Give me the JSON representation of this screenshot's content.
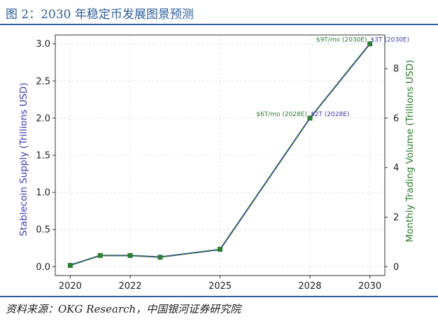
{
  "figure": {
    "title": "图 2：2030 年稳定币发展图景预测",
    "source": "资料来源：OKG Research，中国银河证券研究院"
  },
  "chart_data": {
    "type": "line",
    "x": [
      2020,
      2021,
      2022,
      2023,
      2025,
      2028,
      2030
    ],
    "xticks": [
      2020,
      2022,
      2025,
      2028,
      2030
    ],
    "xlim": [
      2019.5,
      2030.5
    ],
    "series": [
      {
        "axis": "left",
        "values": [
          0.02,
          0.15,
          0.15,
          0.13,
          0.23,
          2.0,
          3.0
        ],
        "color": "#3b3fb5"
      },
      {
        "axis": "right",
        "values": [
          0.05,
          0.45,
          0.45,
          0.38,
          0.7,
          6.0,
          9.0
        ],
        "color": "#2e7d32"
      }
    ],
    "left_axis": {
      "label": "Stablecoin Supply (Trillions USD)",
      "ylim": [
        -0.12,
        3.12
      ],
      "ticks": [
        "0.0",
        "0.5",
        "1.0",
        "1.5",
        "2.0",
        "2.5",
        "3.0"
      ],
      "color": "#3b3fb5"
    },
    "right_axis": {
      "label": "Monthly Trading Volume (Trillions USD)",
      "ylim": [
        -0.36,
        9.36
      ],
      "ticks": [
        "0",
        "2",
        "4",
        "6",
        "8"
      ],
      "color": "#2e7d32"
    },
    "annotations": [
      {
        "x": 2028,
        "text": "$6T/mo (2028E)",
        "series": 1
      },
      {
        "x": 2028,
        "text": "$2T (2028E)",
        "series": 0
      },
      {
        "x": 2030,
        "text": "$9T/mo (2030E)",
        "series": 1
      },
      {
        "x": 2030,
        "text": "$3T (2030E)",
        "series": 0
      }
    ],
    "grid": true,
    "legend": "none"
  }
}
